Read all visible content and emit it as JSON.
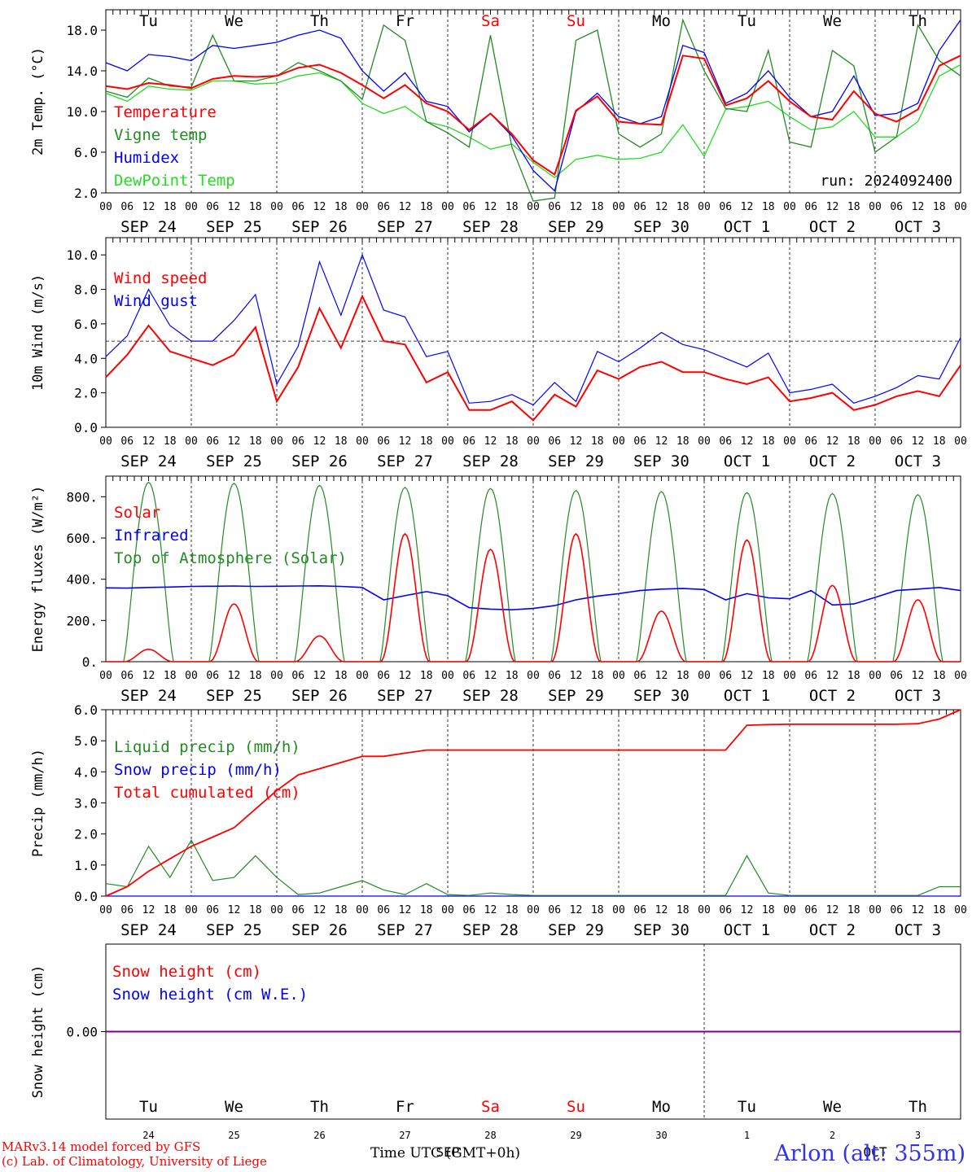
{
  "run_label": "run: 2024092400",
  "days": [
    "SEP 24",
    "SEP 25",
    "SEP 26",
    "SEP 27",
    "SEP 28",
    "SEP 29",
    "SEP 30",
    "OCT  1",
    "OCT  2",
    "OCT  3"
  ],
  "weekdays": [
    "Tu",
    "We",
    "Th",
    "Fr",
    "Sa",
    "Su",
    "Mo",
    "Tu",
    "We",
    "Th"
  ],
  "weekday_colors": [
    "#000000",
    "#000000",
    "#000000",
    "#000000",
    "#ff0000",
    "#ff0000",
    "#000000",
    "#000000",
    "#000000",
    "#000000"
  ],
  "hour_labels": [
    "00",
    "06",
    "12",
    "18"
  ],
  "bottom_day_numbers": [
    "24",
    "25",
    "26",
    "27",
    "28",
    "29",
    "30",
    "1",
    "2",
    "3"
  ],
  "bottom_month_labels": {
    "sep": "SEP",
    "oct": "OCT"
  },
  "xlabel": "Time UTC (GMT+0h)",
  "footer": {
    "line1": "MARv3.14 model forced by GFS",
    "line2": "(c) Lab. of Climatology, University of Liege",
    "station": "Arlon (alt: 355m)"
  },
  "colors": {
    "red": "#ff0000",
    "green": "#228b22",
    "blue": "#0000ff",
    "lightgreen": "#22dd22",
    "purple": "#800080"
  },
  "chart_data": [
    {
      "type": "line",
      "ylabel": "2m Temp. (°C)",
      "ylim": [
        2,
        20
      ],
      "yticks": [
        "2.0",
        "6.0",
        "10.0",
        "14.0",
        "18.0"
      ],
      "x_hours": [
        0,
        6,
        12,
        18,
        24,
        30,
        36,
        42,
        48,
        54,
        60,
        66,
        72,
        78,
        84,
        90,
        96,
        102,
        108,
        114,
        120,
        126,
        132,
        138,
        144,
        150,
        156,
        162,
        168,
        174,
        180,
        186,
        192,
        198,
        204,
        210,
        216,
        222,
        228,
        234,
        240
      ],
      "series": [
        {
          "name": "Temperature",
          "color": "#ff0000",
          "values": [
            12.5,
            12.2,
            12.8,
            12.6,
            12.3,
            13.2,
            13.5,
            13.4,
            13.5,
            14.3,
            14.6,
            13.8,
            12.6,
            11.3,
            12.6,
            10.8,
            10.0,
            8.2,
            9.8,
            7.8,
            5.2,
            3.8,
            10.1,
            11.5,
            9.0,
            8.8,
            8.7,
            15.5,
            15.2,
            10.6,
            11.3,
            13.0,
            11.0,
            9.5,
            9.2,
            12.0,
            9.8,
            9.0,
            10.2,
            14.5,
            15.5
          ]
        },
        {
          "name": "Vigne temp",
          "color": "#228b22",
          "values": [
            12.0,
            11.4,
            13.3,
            12.5,
            12.4,
            17.5,
            13.0,
            13.0,
            13.5,
            14.8,
            14.0,
            13.0,
            11.2,
            18.5,
            17.0,
            9.0,
            7.9,
            6.5,
            17.5,
            6.5,
            1.2,
            1.5,
            17.0,
            18.0,
            7.8,
            6.5,
            7.8,
            19.0,
            14.0,
            10.3,
            10.0,
            16.0,
            7.0,
            6.5,
            16.0,
            14.5,
            6.0,
            7.5,
            18.5,
            15.0,
            13.5
          ]
        },
        {
          "name": "Humidex",
          "color": "#0000ff",
          "values": [
            14.8,
            14.0,
            15.6,
            15.4,
            15.0,
            16.5,
            16.2,
            16.5,
            16.8,
            17.5,
            18.0,
            17.2,
            14.0,
            12.0,
            13.8,
            11.0,
            10.5,
            8.0,
            9.8,
            7.6,
            4.2,
            2.2,
            10.0,
            11.8,
            9.5,
            8.8,
            9.5,
            16.5,
            15.8,
            10.8,
            11.8,
            14.0,
            11.4,
            9.5,
            10.0,
            13.5,
            9.6,
            9.8,
            10.8,
            16.0,
            19.0
          ]
        },
        {
          "name": "DewPoint Temp",
          "color": "#22dd22",
          "values": [
            11.8,
            11.0,
            12.5,
            12.2,
            12.1,
            13.0,
            13.0,
            12.7,
            12.8,
            13.5,
            13.8,
            13.0,
            10.8,
            9.8,
            10.5,
            9.0,
            8.5,
            7.5,
            6.3,
            6.8,
            5.0,
            3.5,
            5.3,
            5.7,
            5.3,
            5.4,
            6.0,
            8.7,
            5.6,
            10.2,
            10.5,
            11.0,
            9.5,
            8.2,
            8.5,
            10.0,
            7.5,
            7.5,
            9.0,
            13.5,
            14.6
          ]
        }
      ]
    },
    {
      "type": "line",
      "ylabel": "10m Wind (m/s)",
      "ylim": [
        0,
        11
      ],
      "yticks": [
        "0.0",
        "2.0",
        "4.0",
        "6.0",
        "8.0",
        "10.0"
      ],
      "threshold": 5,
      "x_hours": [
        0,
        6,
        12,
        18,
        24,
        30,
        36,
        42,
        48,
        54,
        60,
        66,
        72,
        78,
        84,
        90,
        96,
        102,
        108,
        114,
        120,
        126,
        132,
        138,
        144,
        150,
        156,
        162,
        168,
        174,
        180,
        186,
        192,
        198,
        204,
        210,
        216,
        222,
        228,
        234,
        240
      ],
      "series": [
        {
          "name": "Wind speed",
          "color": "#ff0000",
          "values": [
            2.9,
            4.2,
            5.9,
            4.4,
            4.0,
            3.6,
            4.2,
            5.8,
            1.5,
            3.5,
            6.9,
            4.6,
            7.6,
            5.0,
            4.8,
            2.6,
            3.2,
            1.0,
            1.0,
            1.5,
            0.4,
            1.9,
            1.2,
            3.3,
            2.8,
            3.5,
            3.8,
            3.2,
            3.2,
            2.8,
            2.5,
            2.9,
            1.5,
            1.7,
            2.0,
            1.0,
            1.3,
            1.8,
            2.1,
            1.8,
            3.6
          ]
        },
        {
          "name": "Wind gust",
          "color": "#0000ff",
          "values": [
            4.1,
            5.3,
            8.0,
            5.9,
            5.0,
            5.0,
            6.2,
            7.7,
            2.5,
            4.7,
            9.6,
            6.5,
            10.0,
            6.8,
            6.4,
            4.1,
            4.4,
            1.4,
            1.5,
            1.9,
            1.3,
            2.6,
            1.5,
            4.4,
            3.8,
            4.6,
            5.5,
            4.8,
            4.5,
            4.0,
            3.5,
            4.3,
            2.0,
            2.2,
            2.5,
            1.4,
            1.8,
            2.3,
            3.0,
            2.8,
            5.2
          ]
        }
      ]
    },
    {
      "type": "line",
      "ylabel": "Energy fluxes (W/m²)",
      "ylim": [
        0,
        900
      ],
      "yticks": [
        "0.",
        "200.",
        "400.",
        "600.",
        "800."
      ],
      "series": [
        {
          "name": "Solar",
          "color": "#ff0000",
          "daily_peaks": [
            60,
            280,
            125,
            620,
            545,
            620,
            245,
            590,
            370,
            300
          ]
        },
        {
          "name": "Infrared",
          "color": "#0000ff",
          "values": [
            358,
            357,
            360,
            362,
            365,
            366,
            367,
            365,
            366,
            367,
            368,
            365,
            360,
            300,
            320,
            340,
            320,
            262,
            255,
            252,
            258,
            272,
            300,
            318,
            330,
            345,
            352,
            355,
            350,
            300,
            330,
            310,
            305,
            345,
            275,
            280,
            312,
            345,
            352,
            360,
            345
          ]
        },
        {
          "name": "Top of Atmosphere (Solar)",
          "color": "#228b22",
          "daily_peaks": [
            870,
            865,
            855,
            845,
            840,
            830,
            825,
            820,
            815,
            810
          ]
        }
      ]
    },
    {
      "type": "line",
      "ylabel": "Precip (mm/h)",
      "ylim": [
        0,
        6
      ],
      "yticks": [
        "0.0",
        "1.0",
        "2.0",
        "3.0",
        "4.0",
        "5.0",
        "6.0"
      ],
      "x_hours": [
        0,
        6,
        12,
        18,
        24,
        30,
        36,
        42,
        48,
        54,
        60,
        66,
        72,
        78,
        84,
        90,
        96,
        102,
        108,
        114,
        120,
        126,
        132,
        138,
        144,
        150,
        156,
        162,
        168,
        174,
        180,
        186,
        192,
        198,
        204,
        210,
        216,
        222,
        228,
        234,
        240
      ],
      "series": [
        {
          "name": "Liquid precip (mm/h)",
          "color": "#228b22",
          "values": [
            0.4,
            0.3,
            1.6,
            0.6,
            1.8,
            0.5,
            0.6,
            1.3,
            0.6,
            0.05,
            0.1,
            0.3,
            0.5,
            0.2,
            0.05,
            0.4,
            0.05,
            0.02,
            0.1,
            0.05,
            0.02,
            0.02,
            0.02,
            0.02,
            0.02,
            0.02,
            0.02,
            0.02,
            0.02,
            0.02,
            1.3,
            0.1,
            0.02,
            0.02,
            0.02,
            0.02,
            0.02,
            0.02,
            0.02,
            0.3,
            0.3
          ]
        },
        {
          "name": "Snow precip (mm/h)",
          "color": "#0000ff",
          "values": [
            0,
            0,
            0,
            0,
            0,
            0,
            0,
            0,
            0,
            0,
            0,
            0,
            0,
            0,
            0,
            0,
            0,
            0,
            0,
            0,
            0,
            0,
            0,
            0,
            0,
            0,
            0,
            0,
            0,
            0,
            0,
            0,
            0,
            0,
            0,
            0,
            0,
            0,
            0,
            0,
            0
          ]
        },
        {
          "name": "Total cumulated (cm)",
          "color": "#ff0000",
          "values": [
            0.0,
            0.3,
            0.8,
            1.2,
            1.6,
            1.9,
            2.2,
            2.8,
            3.4,
            3.9,
            4.1,
            4.3,
            4.5,
            4.5,
            4.6,
            4.7,
            4.7,
            4.7,
            4.7,
            4.7,
            4.7,
            4.7,
            4.7,
            4.7,
            4.7,
            4.7,
            4.7,
            4.7,
            4.7,
            4.7,
            5.5,
            5.52,
            5.53,
            5.53,
            5.53,
            5.53,
            5.53,
            5.53,
            5.55,
            5.7,
            6.0
          ]
        }
      ]
    },
    {
      "type": "line",
      "ylabel": "Snow height (cm)",
      "ylim": [
        -1,
        1
      ],
      "yticks": [
        "0.00"
      ],
      "series": [
        {
          "name": "Snow height (cm)",
          "color": "#ff0000",
          "values": [
            0,
            0
          ]
        },
        {
          "name": "Snow height (cm W.E.)",
          "color": "#0000ff",
          "values": [
            0,
            0
          ]
        }
      ]
    }
  ]
}
